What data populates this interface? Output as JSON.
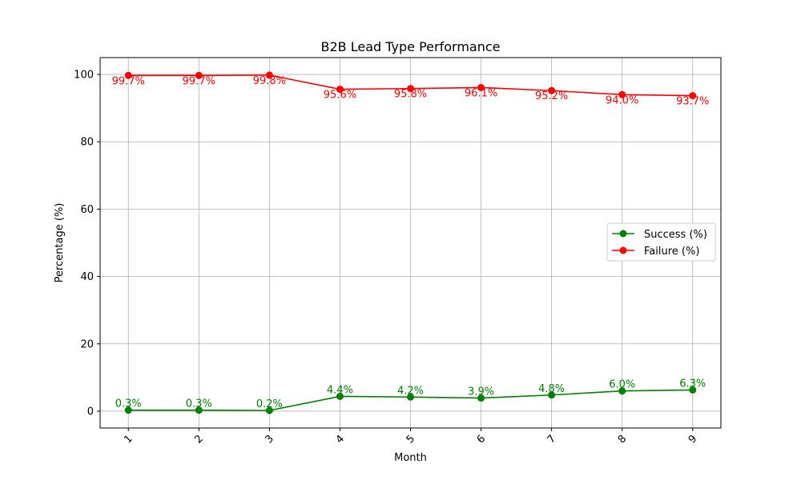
{
  "chart_data": {
    "type": "line",
    "title": "B2B Lead Type Performance",
    "xlabel": "Month",
    "ylabel": "Percentage (%)",
    "categories": [
      "1",
      "2",
      "3",
      "4",
      "5",
      "6",
      "7",
      "8",
      "9"
    ],
    "x": [
      1,
      2,
      3,
      4,
      5,
      6,
      7,
      8,
      9
    ],
    "xlim": [
      0.6,
      9.4
    ],
    "ylim": [
      -5,
      105
    ],
    "yticks": [
      0,
      20,
      40,
      60,
      80,
      100
    ],
    "grid": true,
    "legend_position": "center-right",
    "series": [
      {
        "name": "Success (%)",
        "color": "#008000",
        "marker": "circle",
        "values": [
          0.3,
          0.3,
          0.2,
          4.4,
          4.2,
          3.9,
          4.8,
          6.0,
          6.3
        ],
        "labels": [
          "0.3%",
          "0.3%",
          "0.2%",
          "4.4%",
          "4.2%",
          "3.9%",
          "4.8%",
          "6.0%",
          "6.3%"
        ]
      },
      {
        "name": "Failure (%)",
        "color": "#ff0000",
        "marker": "circle",
        "values": [
          99.7,
          99.7,
          99.8,
          95.6,
          95.8,
          96.1,
          95.2,
          94.0,
          93.7
        ],
        "labels": [
          "99.7%",
          "99.7%",
          "99.8%",
          "95.6%",
          "95.8%",
          "96.1%",
          "95.2%",
          "94.0%",
          "93.7%"
        ]
      }
    ]
  }
}
